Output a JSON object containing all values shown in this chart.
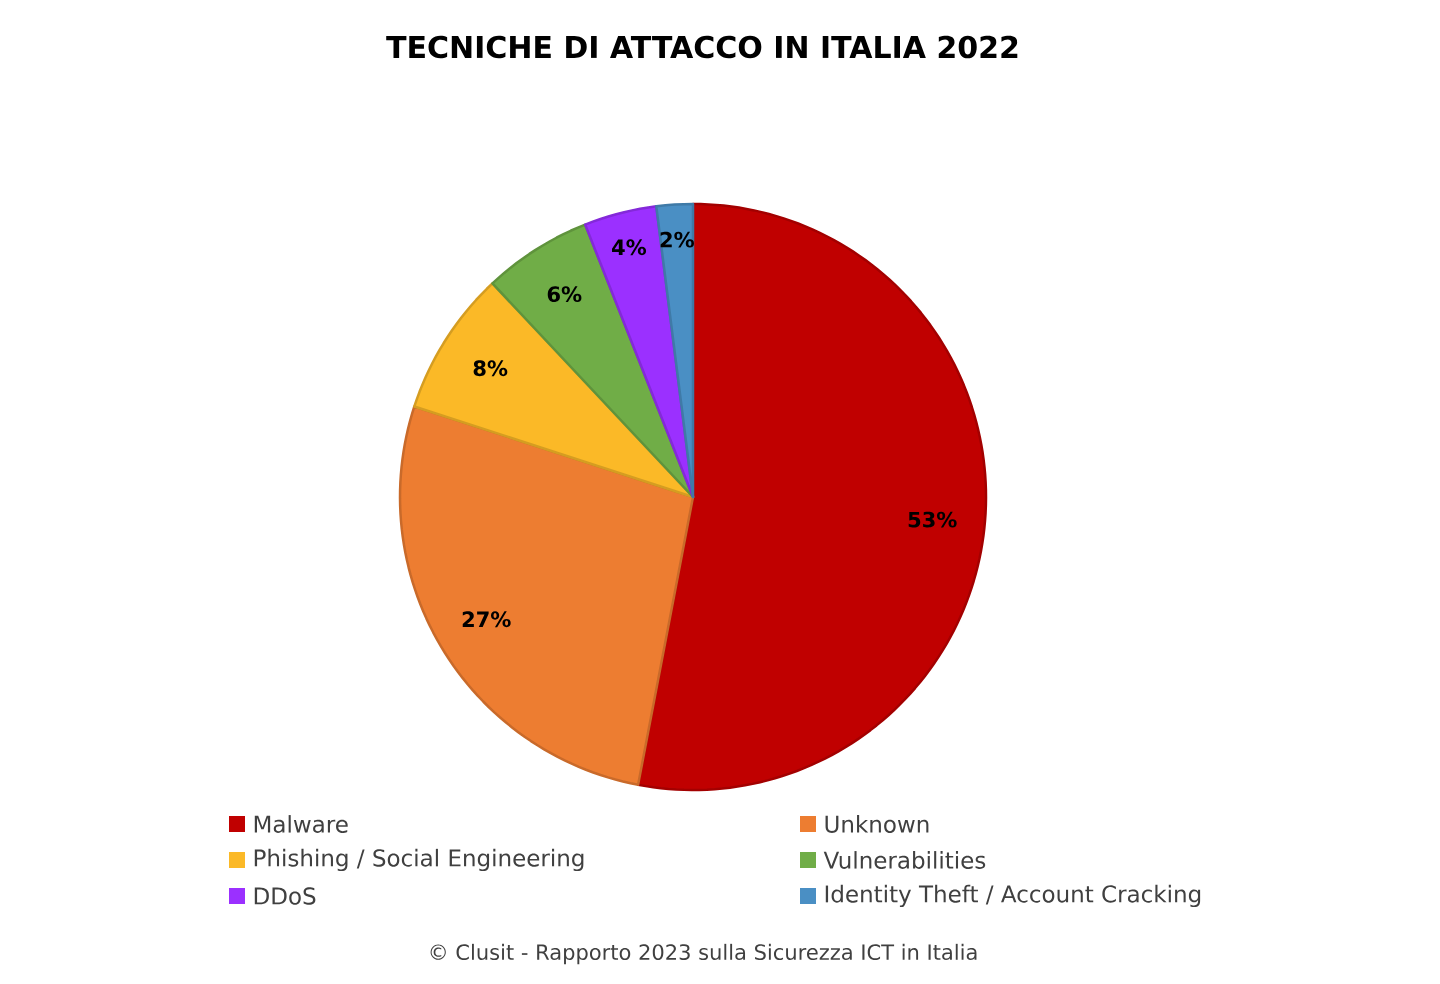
{
  "chart_data": {
    "type": "pie",
    "title": "TECNICHE DI ATTACCO IN ITALIA 2022",
    "categories": [
      "Malware",
      "Unknown",
      "Phishing / Social Engineering",
      "Vulnerabilities",
      "DDoS",
      "Identity Theft / Account Cracking"
    ],
    "values": [
      53,
      27,
      8,
      6,
      4,
      2
    ],
    "colors": [
      "#c00000",
      "#ed7d31",
      "#fbb927",
      "#70ad47",
      "#9b30ff",
      "#4a8fc4"
    ],
    "value_labels": [
      "53%",
      "27%",
      "8%",
      "6%",
      "4%",
      "2%"
    ],
    "legend": "bottom",
    "annotations": [
      "© Clusit - Rapporto 2023 sulla Sicurezza ICT in Italia"
    ]
  }
}
